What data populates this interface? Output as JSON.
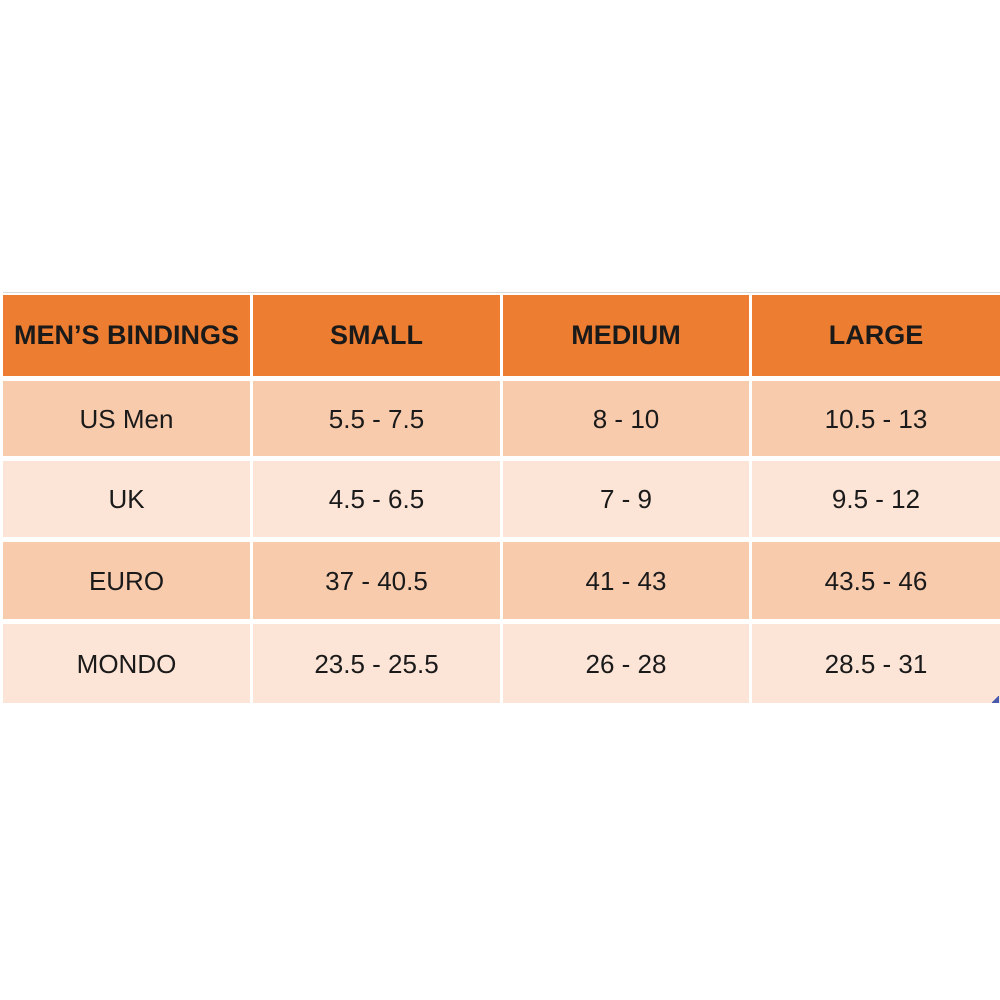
{
  "chart_data": {
    "type": "table",
    "columns": [
      "MEN’S BINDINGS",
      "SMALL",
      "MEDIUM",
      "LARGE"
    ],
    "rows": [
      [
        "US Men",
        "5.5 - 7.5",
        "8 - 10",
        "10.5 - 13"
      ],
      [
        "UK",
        "4.5 - 6.5",
        "7 - 9",
        "9.5 - 12"
      ],
      [
        "EURO",
        "37 - 40.5",
        "41 - 43",
        "43.5 - 46"
      ],
      [
        "MONDO",
        "23.5 - 25.5",
        "26 - 28",
        "28.5 - 31"
      ]
    ],
    "layout_hints": {
      "header_row": true,
      "alternating_rows": true,
      "cell_alignment": "center"
    }
  },
  "colors": {
    "page_bg": "#FFFFFF",
    "header_bg": "#ED7D31",
    "row_dark_bg": "#F8CBAD",
    "row_light_bg": "#FCE4D6",
    "text": "#1A1A1A",
    "grid_lines": "#FFFFFF",
    "top_hairline": "#D9D9D9",
    "handle_blue": "#4A5AAE"
  }
}
